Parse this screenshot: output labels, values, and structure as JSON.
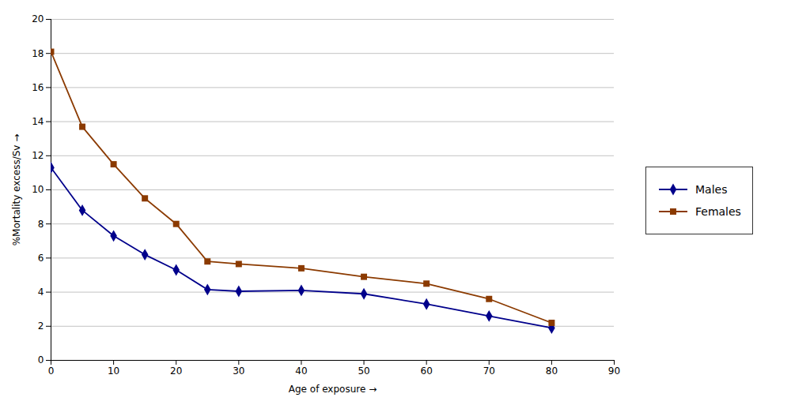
{
  "chart_data": {
    "type": "line",
    "x": [
      0,
      5,
      10,
      15,
      20,
      25,
      30,
      40,
      50,
      60,
      70,
      80
    ],
    "series": [
      {
        "name": "Males",
        "color": "#00008B",
        "marker": "diamond",
        "values": [
          11.3,
          8.8,
          7.3,
          6.2,
          5.3,
          4.15,
          4.05,
          4.1,
          3.9,
          3.3,
          2.6,
          1.9
        ]
      },
      {
        "name": "Females",
        "color": "#8B3A00",
        "marker": "square",
        "values": [
          18.1,
          13.7,
          11.5,
          9.5,
          8.0,
          5.8,
          5.65,
          5.4,
          4.9,
          4.5,
          3.6,
          2.2
        ]
      }
    ],
    "xlabel": "Age of exposure",
    "ylabel": "%Mortality excess/Sv",
    "xlim": [
      0,
      90
    ],
    "ylim": [
      0,
      20
    ],
    "xticks": [
      0,
      10,
      20,
      30,
      40,
      50,
      60,
      70,
      80,
      90
    ],
    "yticks": [
      0,
      2,
      4,
      6,
      8,
      10,
      12,
      14,
      16,
      18,
      20
    ],
    "grid": "y",
    "legend": "right"
  }
}
